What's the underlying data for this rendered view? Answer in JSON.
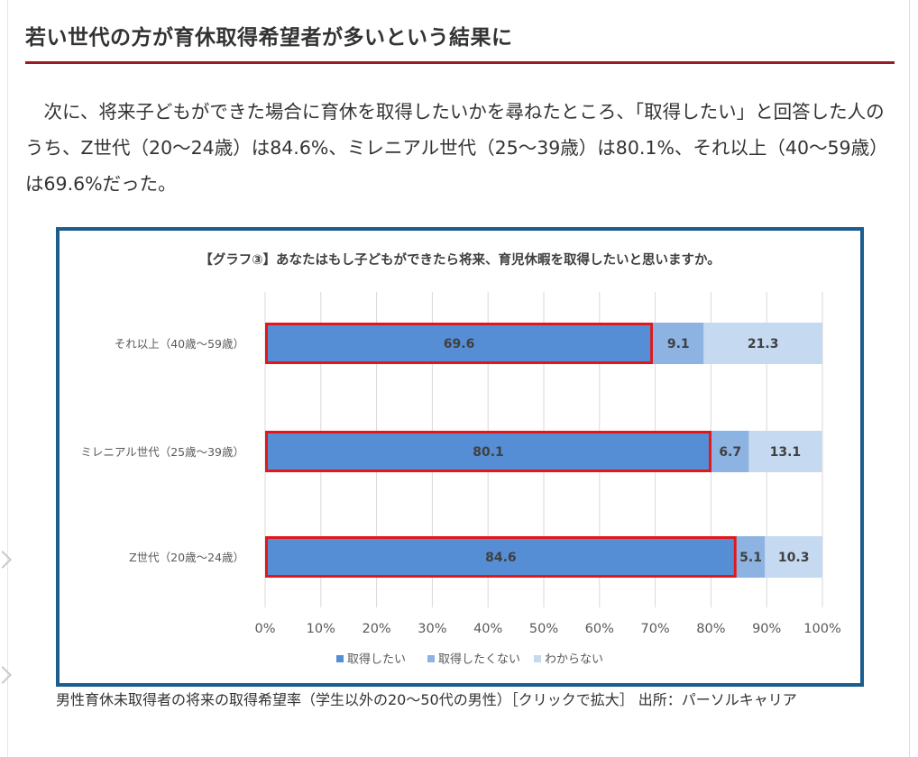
{
  "article": {
    "heading": "若い世代の方が育休取得希望者が多いという結果に",
    "paragraph": "次に、将来子どもができた場合に育休を取得したいかを尋ねたところ、「取得したい」と回答した人のうち、Z世代（20～24歳）は84.6%、ミレニアル世代（25～39歳）は80.1%、それ以上（40～59歳）は69.6%だった。",
    "caption": "男性育休未取得者の将来の取得希望率（学生以外の20～50代の男性）［クリックで拡大］ 出所：パーソルキャリア"
  },
  "colors": {
    "heading_rule": "#9b1b24",
    "frame": "#1c5d8e",
    "highlight": "#e0181b"
  },
  "chart_data": {
    "type": "bar",
    "orientation": "horizontal",
    "stacked": true,
    "title": "【グラフ③】あなたはもし子どもができたら将来、育児休暇を取得したいと思いますか。",
    "categories": [
      "それ以上（40歳～59歳）",
      "ミレニアル世代（25歳～39歳）",
      "Z世代（20歳～24歳）"
    ],
    "series": [
      {
        "name": "取得したい",
        "values": [
          69.6,
          80.1,
          84.6
        ],
        "color": "#558ed5"
      },
      {
        "name": "取得したくない",
        "values": [
          9.1,
          6.7,
          5.1
        ],
        "color": "#8db3e2"
      },
      {
        "name": "わからない",
        "values": [
          21.3,
          13.1,
          10.3
        ],
        "color": "#c5d9f1"
      }
    ],
    "xlim": [
      0,
      100
    ],
    "xticks": [
      "0%",
      "10%",
      "20%",
      "30%",
      "40%",
      "50%",
      "60%",
      "70%",
      "80%",
      "90%",
      "100%"
    ],
    "grid": true,
    "legend": "bottom",
    "highlighted_series": "取得したい"
  }
}
